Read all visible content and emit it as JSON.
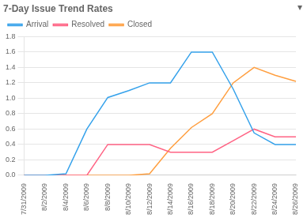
{
  "chart_data": {
    "type": "line",
    "title": "7-Day Issue Trend Rates",
    "categories": [
      "7/31/2009",
      "8/2/2009",
      "8/4/2009",
      "8/6/2009",
      "8/8/2009",
      "8/10/2009",
      "8/12/2009",
      "8/14/2009",
      "8/16/2009",
      "8/18/2009",
      "8/20/2009",
      "8/22/2009",
      "8/24/2009",
      "8/26/2009"
    ],
    "series": [
      {
        "name": "Arrival",
        "values": [
          0.0,
          0.0,
          0.02,
          0.6,
          1.01,
          1.1,
          1.2,
          1.2,
          1.6,
          1.6,
          1.12,
          0.55,
          0.4,
          0.4
        ]
      },
      {
        "name": "Resolved",
        "values": [
          0.0,
          0.0,
          0.0,
          0.0,
          0.4,
          0.4,
          0.4,
          0.3,
          0.3,
          0.3,
          0.45,
          0.6,
          0.5,
          0.5
        ]
      },
      {
        "name": "Closed",
        "values": [
          0.0,
          0.0,
          0.0,
          0.0,
          0.0,
          0.0,
          0.02,
          0.35,
          0.62,
          0.8,
          1.2,
          1.4,
          1.3,
          1.22
        ]
      }
    ],
    "ylim": [
      0.0,
      1.8
    ],
    "yticks": [
      {
        "value": 0,
        "label": "0.0"
      },
      0.2,
      0.4,
      0.6,
      0.8,
      {
        "value": 1,
        "label": "1.0"
      },
      1.2,
      1.4,
      1.6,
      1.8
    ],
    "grid": true,
    "legend": "upper left",
    "annotations": [
      "▾"
    ]
  }
}
